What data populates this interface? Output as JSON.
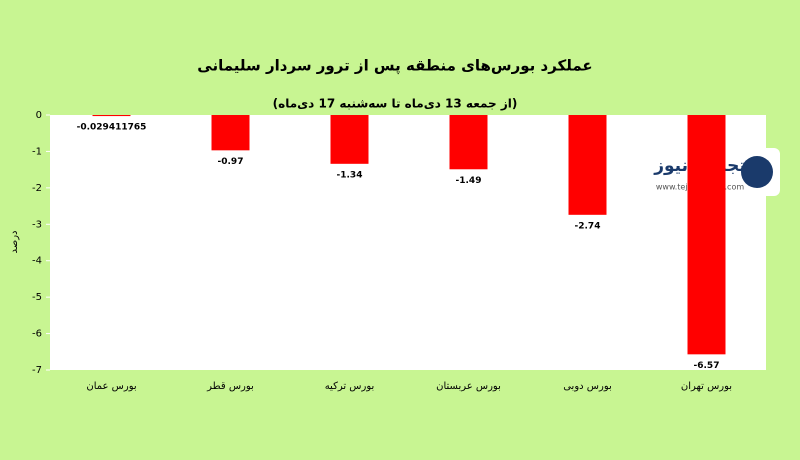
{
  "chart_data": {
    "type": "bar",
    "title": "عملکرد بورس‌های منطقه پس از ترور سردار سلیمانی",
    "subtitle": "(از جمعه 13 دی‌ماه تا سه‌شنبه 17 دی‌ماه)",
    "y_label": "درصد",
    "categories": [
      "بورس عمان",
      "بورس قطر",
      "بورس ترکیه",
      "بورس عربستان",
      "بورس دوبی",
      "بورس تهران"
    ],
    "values": [
      -0.029411765,
      -0.97,
      -1.34,
      -1.49,
      -2.74,
      -6.57
    ],
    "color": "#ff0000",
    "ylim": [
      -7,
      0
    ],
    "yticks": [
      0,
      -1,
      -2,
      -3,
      -4,
      -5,
      -6,
      -7
    ],
    "grid": false
  },
  "watermark": {
    "name": "تجارت نیوز",
    "url": "www.tejaratnews.com"
  }
}
